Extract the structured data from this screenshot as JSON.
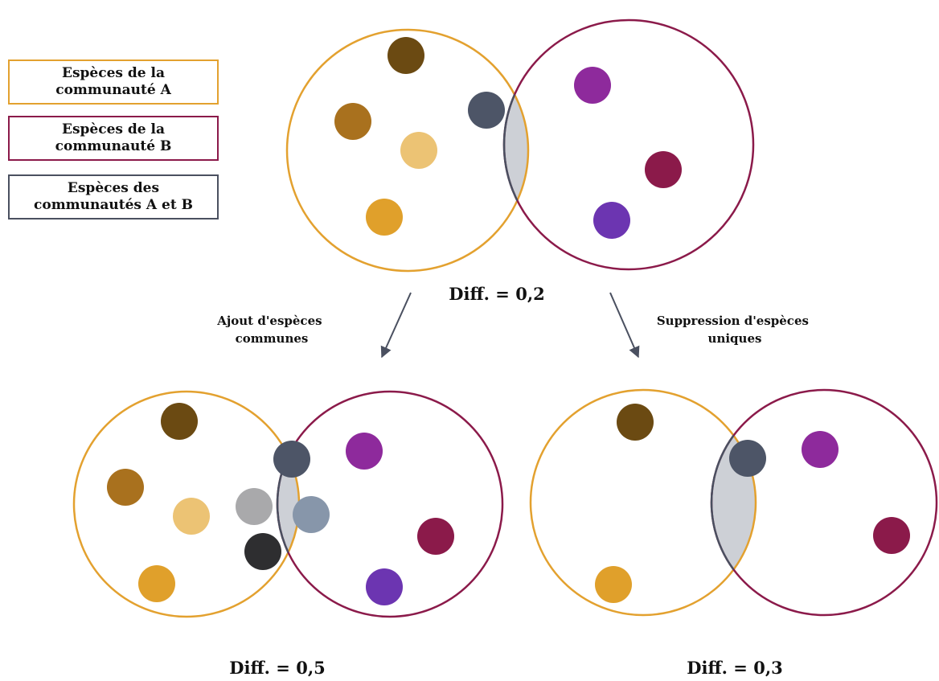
{
  "legend": {
    "community_a": [
      "Espèces de la",
      "communauté A"
    ],
    "community_b": [
      "Espèces de la",
      "communauté B"
    ],
    "shared": [
      "Espèces des",
      "communautés A et B"
    ]
  },
  "colors": {
    "community_a": "#e3a12f",
    "community_b": "#8b1a4a",
    "shared_fill": "#cdd0d6",
    "shared_border": "#4a5060"
  },
  "diagrams": {
    "top": {
      "diff_label": "Diff. = 0,2"
    },
    "bottom_left": {
      "diff_label": "Diff. = 0,5"
    },
    "bottom_right": {
      "diff_label": "Diff. = 0,3"
    }
  },
  "arrows": {
    "left": [
      "Ajout d'espèces",
      "communes"
    ],
    "right": [
      "Suppression d'espèces",
      "uniques"
    ]
  }
}
